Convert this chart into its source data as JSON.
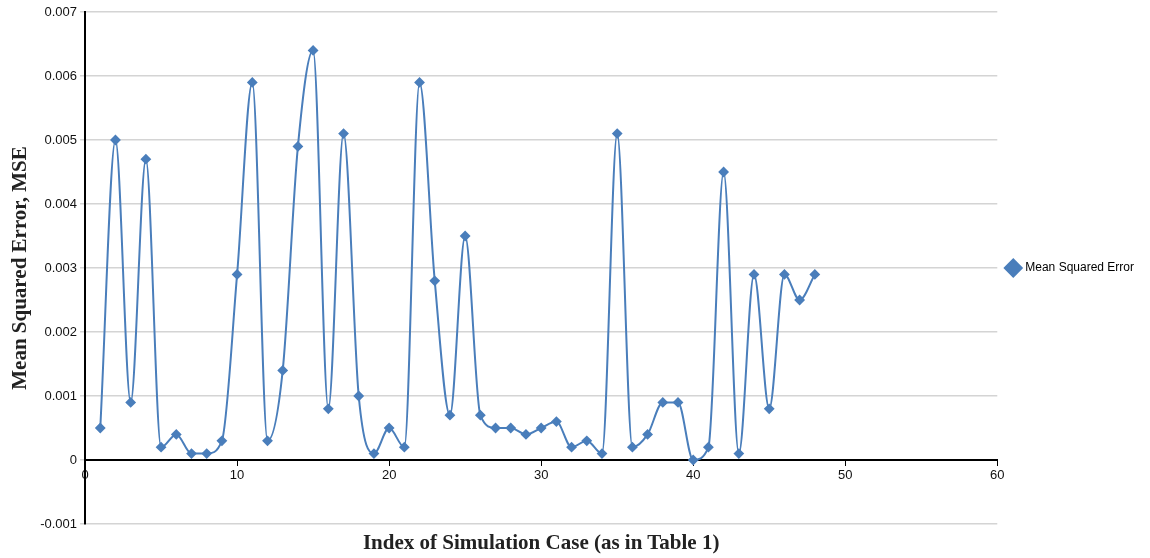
{
  "chart_data": {
    "type": "line",
    "xlabel": "Index of Simulation Case (as in Table 1)",
    "ylabel": "Mean Squared Error, MSE",
    "x": [
      1,
      2,
      3,
      4,
      5,
      6,
      7,
      8,
      9,
      10,
      11,
      12,
      13,
      14,
      15,
      16,
      17,
      18,
      19,
      20,
      21,
      22,
      23,
      24,
      25,
      26,
      27,
      28,
      29,
      30,
      31,
      32,
      33,
      34,
      35,
      36,
      37,
      38,
      39,
      40,
      41,
      42,
      43,
      44,
      45,
      46,
      47,
      48
    ],
    "series": [
      {
        "name": "Mean Squared Error",
        "color": "#4a7ebb",
        "values": [
          0.0005,
          0.005,
          0.0009,
          0.0047,
          0.0002,
          0.0004,
          0.0001,
          0.0001,
          0.0003,
          0.0029,
          0.0059,
          0.0003,
          0.0014,
          0.0049,
          0.0064,
          0.0008,
          0.0051,
          0.001,
          0.0001,
          0.0005,
          0.0002,
          0.0059,
          0.0028,
          0.0007,
          0.0035,
          0.0007,
          0.0005,
          0.0005,
          0.0004,
          0.0005,
          0.0006,
          0.0002,
          0.0003,
          0.0001,
          0.0051,
          0.0002,
          0.0004,
          0.0009,
          0.0009,
          0,
          0.0002,
          0.0045,
          0.0001,
          0.0029,
          0.0008,
          0.0029,
          0.0025,
          0.0029
        ]
      }
    ],
    "xlim": [
      0,
      60
    ],
    "xticks": [
      0,
      10,
      20,
      30,
      40,
      50,
      60
    ],
    "ylim": [
      -0.001,
      0.007
    ],
    "yticks": [
      -0.001,
      0,
      0.001,
      0.002,
      0.003,
      0.004,
      0.005,
      0.006,
      0.007
    ],
    "grid": "y",
    "legend": "right",
    "marker": "diamond",
    "line_style": "solid"
  }
}
